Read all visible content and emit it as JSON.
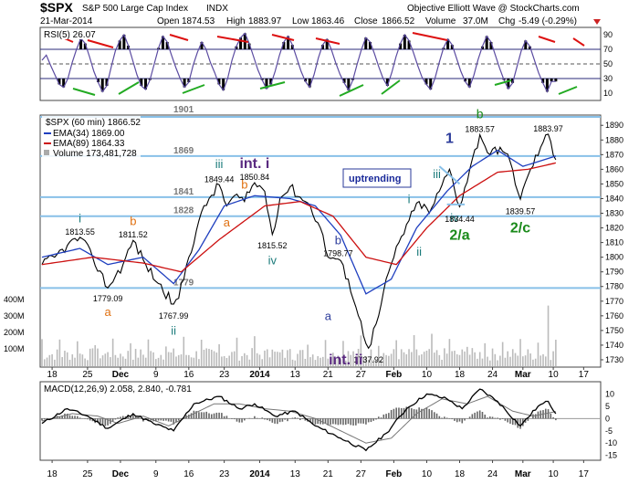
{
  "chart_data": {
    "type": "line",
    "header": {
      "symbol": "$SPX",
      "name": "S&P 500 Large Cap Index",
      "exchange": "INDX",
      "date": "21-Mar-2014",
      "open_label": "Open",
      "open": "1874.53",
      "high_label": "High",
      "high": "1883.97",
      "low_label": "Low",
      "low": "1863.46",
      "close_label": "Close",
      "close": "1866.52",
      "volume_label": "Volume",
      "volume": "37.0M",
      "chg_label": "Chg",
      "chg": "-5.49 (-0.29%)",
      "watermark": "Objective Elliott Wave @ StockCharts.com"
    },
    "rsi": {
      "label": "RSI(5) 26.07",
      "ylim": [
        0,
        100
      ],
      "ticks": [
        10,
        30,
        50,
        70,
        90
      ],
      "levels": [
        30,
        50,
        70
      ],
      "series": [
        55,
        62,
        48,
        35,
        22,
        18,
        30,
        52,
        70,
        85,
        78,
        60,
        40,
        25,
        12,
        20,
        45,
        68,
        82,
        90,
        75,
        55,
        35,
        20,
        15,
        28,
        50,
        72,
        88,
        80,
        62,
        45,
        30,
        18,
        25,
        48,
        66,
        80,
        70,
        52,
        38,
        22,
        14,
        30,
        55,
        74,
        86,
        92,
        78,
        60,
        42,
        28,
        16,
        22,
        40,
        62,
        80,
        88,
        76,
        58,
        40,
        26,
        18,
        35,
        58,
        76,
        84,
        70,
        52,
        36,
        24,
        14,
        28,
        50,
        70,
        86,
        80,
        64,
        46,
        30,
        20,
        38,
        60,
        78,
        90,
        82,
        66,
        48,
        32,
        22,
        15,
        30,
        52,
        72,
        84,
        76,
        58,
        40,
        26,
        18,
        34,
        56,
        74,
        88,
        80,
        62,
        44,
        28,
        16,
        24,
        46,
        68,
        82,
        74,
        56,
        38,
        24,
        12,
        26,
        26
      ]
    },
    "price": {
      "legend_title": "$SPX (60 min) 1866.52",
      "legend_ema34": "EMA(34) 1869.00",
      "legend_ema89": "EMA(89) 1864.33",
      "legend_volume": "Volume 173,481,728",
      "ylim": [
        1725,
        1897
      ],
      "yticks": [
        1730,
        1740,
        1750,
        1760,
        1770,
        1780,
        1790,
        1800,
        1810,
        1820,
        1830,
        1840,
        1850,
        1860,
        1870,
        1880,
        1890
      ],
      "volume_ticks": [
        "100M",
        "200M",
        "300M",
        "400M"
      ],
      "hlines": [
        {
          "value": 1901,
          "label": "1901"
        },
        {
          "value": 1869,
          "label": "1869"
        },
        {
          "value": 1841,
          "label": "1841"
        },
        {
          "value": 1828,
          "label": "1828"
        },
        {
          "value": 1779,
          "label": "1779"
        }
      ],
      "anchors": [
        [
          0,
          1795
        ],
        [
          5,
          1800
        ],
        [
          10,
          1808
        ],
        [
          15,
          1813.55
        ],
        [
          20,
          1800
        ],
        [
          26,
          1779.09
        ],
        [
          32,
          1795
        ],
        [
          36,
          1811.52
        ],
        [
          41,
          1795
        ],
        [
          46,
          1782
        ],
        [
          52,
          1767.99
        ],
        [
          54,
          1772
        ],
        [
          58,
          1800
        ],
        [
          62,
          1825
        ],
        [
          66,
          1840
        ],
        [
          70,
          1849.44
        ],
        [
          73,
          1835
        ],
        [
          76,
          1842
        ],
        [
          80,
          1838
        ],
        [
          84,
          1850.84
        ],
        [
          88,
          1845
        ],
        [
          91,
          1815.52
        ],
        [
          94,
          1840
        ],
        [
          98,
          1848
        ],
        [
          102,
          1841
        ],
        [
          106,
          1835
        ],
        [
          110,
          1820
        ],
        [
          113,
          1800
        ],
        [
          117,
          1798.77
        ],
        [
          121,
          1785
        ],
        [
          125,
          1760
        ],
        [
          129,
          1737.92
        ],
        [
          133,
          1760
        ],
        [
          137,
          1790
        ],
        [
          141,
          1810
        ],
        [
          145,
          1825
        ],
        [
          149,
          1838
        ],
        [
          153,
          1830
        ],
        [
          157,
          1845
        ],
        [
          161,
          1860
        ],
        [
          165,
          1834.44
        ],
        [
          169,
          1860
        ],
        [
          173,
          1883.57
        ],
        [
          177,
          1870
        ],
        [
          181,
          1875
        ],
        [
          185,
          1865
        ],
        [
          189,
          1839.57
        ],
        [
          193,
          1860
        ],
        [
          197,
          1875
        ],
        [
          200,
          1883.97
        ],
        [
          203,
          1866.52
        ]
      ],
      "ema34_anchors": [
        [
          0,
          1800
        ],
        [
          15,
          1806
        ],
        [
          26,
          1795
        ],
        [
          40,
          1800
        ],
        [
          52,
          1782
        ],
        [
          62,
          1805
        ],
        [
          72,
          1835
        ],
        [
          84,
          1842
        ],
        [
          98,
          1840
        ],
        [
          108,
          1835
        ],
        [
          118,
          1815
        ],
        [
          128,
          1775
        ],
        [
          138,
          1785
        ],
        [
          148,
          1820
        ],
        [
          160,
          1845
        ],
        [
          170,
          1862
        ],
        [
          180,
          1873
        ],
        [
          190,
          1862
        ],
        [
          203,
          1869
        ]
      ],
      "ema89_anchors": [
        [
          0,
          1795
        ],
        [
          20,
          1800
        ],
        [
          40,
          1796
        ],
        [
          55,
          1790
        ],
        [
          70,
          1812
        ],
        [
          88,
          1835
        ],
        [
          102,
          1838
        ],
        [
          115,
          1828
        ],
        [
          128,
          1800
        ],
        [
          140,
          1795
        ],
        [
          152,
          1820
        ],
        [
          165,
          1842
        ],
        [
          180,
          1858
        ],
        [
          192,
          1860
        ],
        [
          203,
          1864.33
        ]
      ]
    },
    "annotations": [
      {
        "text": "1813.55",
        "i": 15,
        "v": 1813.55,
        "color": "#000000",
        "size": 9
      },
      {
        "text": "i",
        "i": 15,
        "v": 1822,
        "color": "#1a7a7a",
        "size": 13
      },
      {
        "text": "1779.09",
        "i": 26,
        "v": 1775,
        "color": "#000000",
        "size": 9,
        "below": true
      },
      {
        "text": "a",
        "i": 26,
        "v": 1765,
        "color": "#e07010",
        "size": 13,
        "below": true
      },
      {
        "text": "1811.52",
        "i": 36,
        "v": 1811.52,
        "color": "#000000",
        "size": 9
      },
      {
        "text": "b",
        "i": 36,
        "v": 1820,
        "color": "#e07010",
        "size": 13
      },
      {
        "text": "1767.99",
        "i": 52,
        "v": 1763,
        "color": "#000000",
        "size": 9,
        "below": true
      },
      {
        "text": "ii",
        "i": 52,
        "v": 1752,
        "color": "#1a7a7a",
        "size": 13,
        "below": true
      },
      {
        "text": "1849.44",
        "i": 70,
        "v": 1849.44,
        "color": "#000000",
        "size": 9
      },
      {
        "text": "iii",
        "i": 70,
        "v": 1859,
        "color": "#1a7a7a",
        "size": 13
      },
      {
        "text": "a",
        "i": 73,
        "v": 1826,
        "color": "#e07010",
        "size": 13,
        "below": true
      },
      {
        "text": "1850.84",
        "i": 84,
        "v": 1850.84,
        "color": "#000000",
        "size": 9
      },
      {
        "text": "b",
        "i": 80,
        "v": 1845,
        "color": "#e07010",
        "size": 13
      },
      {
        "text": "int. i",
        "i": 84,
        "v": 1859,
        "color": "#5a2a80",
        "size": 16,
        "bold": true
      },
      {
        "text": "1815.52",
        "i": 91,
        "v": 1811,
        "color": "#000000",
        "size": 9,
        "below": true
      },
      {
        "text": "iv",
        "i": 91,
        "v": 1800,
        "color": "#1a7a7a",
        "size": 13,
        "below": true
      },
      {
        "text": "1798.77",
        "i": 117,
        "v": 1798.77,
        "color": "#000000",
        "size": 9
      },
      {
        "text": "b",
        "i": 117,
        "v": 1807,
        "color": "#2a3a9a",
        "size": 13
      },
      {
        "text": "a",
        "i": 113,
        "v": 1762,
        "color": "#2a3a9a",
        "size": 13,
        "below": true
      },
      {
        "text": "1737.92",
        "i": 129,
        "v": 1733,
        "color": "#000000",
        "size": 9,
        "below": true
      },
      {
        "text": "int. ii",
        "i": 120,
        "v": 1732,
        "color": "#5a2a80",
        "size": 16,
        "bold": true,
        "below": true
      },
      {
        "text": "i",
        "i": 145,
        "v": 1835,
        "color": "#1a7a7a",
        "size": 13
      },
      {
        "text": "ii",
        "i": 149,
        "v": 1806,
        "color": "#1a7a7a",
        "size": 13,
        "below": true
      },
      {
        "text": "iii",
        "i": 156,
        "v": 1852,
        "color": "#1a7a7a",
        "size": 13
      },
      {
        "text": "iv",
        "i": 163,
        "v": 1829,
        "color": "#1a7a7a",
        "size": 13,
        "below": true
      },
      {
        "text": "1",
        "i": 161,
        "v": 1876,
        "color": "#2a3a9a",
        "size": 16,
        "bold": true
      },
      {
        "text": "1834.44",
        "i": 165,
        "v": 1829,
        "color": "#000000",
        "size": 9,
        "below": true
      },
      {
        "text": "2/a",
        "i": 165,
        "v": 1817,
        "color": "#1a8a1a",
        "size": 16,
        "bold": true,
        "below": true
      },
      {
        "text": "1883.57",
        "i": 173,
        "v": 1883.57,
        "color": "#000000",
        "size": 9
      },
      {
        "text": "b",
        "i": 173,
        "v": 1893,
        "color": "#1a8a1a",
        "size": 14
      },
      {
        "text": "1839.57",
        "i": 189,
        "v": 1834.5,
        "color": "#000000",
        "size": 9,
        "below": true
      },
      {
        "text": "2/c",
        "i": 189,
        "v": 1822,
        "color": "#1a8a1a",
        "size": 16,
        "bold": true,
        "below": true
      },
      {
        "text": "1883.97",
        "i": 200,
        "v": 1883.97,
        "color": "#000000",
        "size": 9
      }
    ],
    "label_box": "uptrending",
    "macd": {
      "label": "MACD(12,26,9) 2.058, 2.840, -0.781",
      "ylim": [
        -17,
        15
      ],
      "ticks": [
        -15,
        -10,
        -5,
        0,
        5,
        10
      ],
      "macd_anchors": [
        [
          0,
          -2
        ],
        [
          10,
          4
        ],
        [
          18,
          1
        ],
        [
          26,
          -4
        ],
        [
          36,
          2
        ],
        [
          44,
          -2
        ],
        [
          52,
          -5
        ],
        [
          60,
          6
        ],
        [
          70,
          9
        ],
        [
          78,
          4
        ],
        [
          84,
          6
        ],
        [
          92,
          1
        ],
        [
          100,
          3
        ],
        [
          108,
          -3
        ],
        [
          118,
          -8
        ],
        [
          128,
          -13
        ],
        [
          136,
          -6
        ],
        [
          144,
          4
        ],
        [
          152,
          10
        ],
        [
          160,
          8
        ],
        [
          166,
          4
        ],
        [
          173,
          12
        ],
        [
          180,
          7
        ],
        [
          189,
          -3
        ],
        [
          196,
          5
        ],
        [
          200,
          7
        ],
        [
          203,
          2
        ]
      ],
      "signal_anchors": [
        [
          0,
          -1
        ],
        [
          12,
          2
        ],
        [
          22,
          1
        ],
        [
          30,
          -2
        ],
        [
          40,
          1
        ],
        [
          50,
          -3
        ],
        [
          58,
          1
        ],
        [
          68,
          6
        ],
        [
          78,
          6
        ],
        [
          88,
          4
        ],
        [
          98,
          3
        ],
        [
          108,
          0
        ],
        [
          118,
          -5
        ],
        [
          128,
          -10
        ],
        [
          138,
          -8
        ],
        [
          148,
          2
        ],
        [
          158,
          8
        ],
        [
          168,
          6
        ],
        [
          176,
          9
        ],
        [
          186,
          3
        ],
        [
          194,
          1
        ],
        [
          203,
          2.84
        ]
      ]
    },
    "x_labels": [
      {
        "i": 4,
        "text": "18"
      },
      {
        "i": 18,
        "text": "25"
      },
      {
        "i": 31,
        "text": "Dec"
      },
      {
        "i": 45,
        "text": "9"
      },
      {
        "i": 58,
        "text": "16"
      },
      {
        "i": 72,
        "text": "23"
      },
      {
        "i": 86,
        "text": "2014"
      },
      {
        "i": 100,
        "text": "13"
      },
      {
        "i": 113,
        "text": "21"
      },
      {
        "i": 126,
        "text": "27"
      },
      {
        "i": 139,
        "text": "Feb"
      },
      {
        "i": 152,
        "text": "10"
      },
      {
        "i": 165,
        "text": "18"
      },
      {
        "i": 178,
        "text": "24"
      },
      {
        "i": 190,
        "text": "Mar"
      },
      {
        "i": 202,
        "text": "10"
      },
      {
        "i": 214,
        "text": "17"
      }
    ],
    "bottom_labels_i": [
      4,
      18,
      31,
      45,
      58,
      72,
      86,
      100,
      113,
      126,
      139,
      152,
      165,
      178,
      190,
      202,
      214
    ]
  },
  "colors": {
    "rsi_line": "#5a4aa0",
    "ema34": "#1f3fbf",
    "ema89": "#cc1010",
    "hline": "#88c0e8",
    "trend_red": "#dd1111",
    "trend_green": "#22aa22",
    "volume": "#bbbbbb",
    "macd_hist": "#666666"
  }
}
